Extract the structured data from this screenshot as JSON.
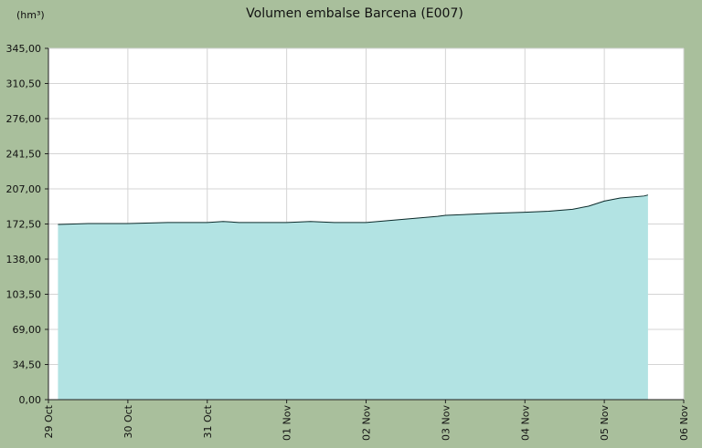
{
  "chart_data": {
    "type": "area",
    "title": "Volumen embalse Barcena  (E007)",
    "unit_label": "(hm³)",
    "ylim": [
      0,
      345
    ],
    "yticks": [
      "0,00",
      "34,50",
      "69,00",
      "103,50",
      "138,00",
      "172,50",
      "207,00",
      "241,50",
      "276,00",
      "310,50",
      "345,00"
    ],
    "xlim": [
      0,
      8
    ],
    "xticks": [
      {
        "x": 0,
        "label": "29 Oct"
      },
      {
        "x": 1,
        "label": "30 Oct"
      },
      {
        "x": 2,
        "label": "31 Oct"
      },
      {
        "x": 3,
        "label": "01 Nov"
      },
      {
        "x": 4,
        "label": "02 Nov"
      },
      {
        "x": 5,
        "label": "03 Nov"
      },
      {
        "x": 6,
        "label": "04 Nov"
      },
      {
        "x": 7,
        "label": "05 Nov"
      },
      {
        "x": 8,
        "label": "06 Nov"
      }
    ],
    "grid": true,
    "colors": {
      "fill": "#b2e3e3",
      "line": "#0b2a2a",
      "plot_bg": "#ffffff",
      "grid": "#d4d4d4"
    },
    "series": [
      {
        "x": [
          0.12,
          0.5,
          1.0,
          1.5,
          2.0,
          2.2,
          2.4,
          2.6,
          3.0,
          3.3,
          3.6,
          4.0,
          4.3,
          4.6,
          4.9,
          5.0,
          5.3,
          5.6,
          6.0,
          6.3,
          6.6,
          6.8,
          7.0,
          7.2,
          7.5,
          7.55
        ],
        "values": [
          172,
          173,
          173,
          174,
          174,
          175,
          174,
          174,
          174,
          175,
          174,
          174,
          176,
          178,
          180,
          181,
          182,
          183,
          184,
          185,
          187,
          190,
          195,
          198,
          200,
          201
        ]
      }
    ]
  }
}
